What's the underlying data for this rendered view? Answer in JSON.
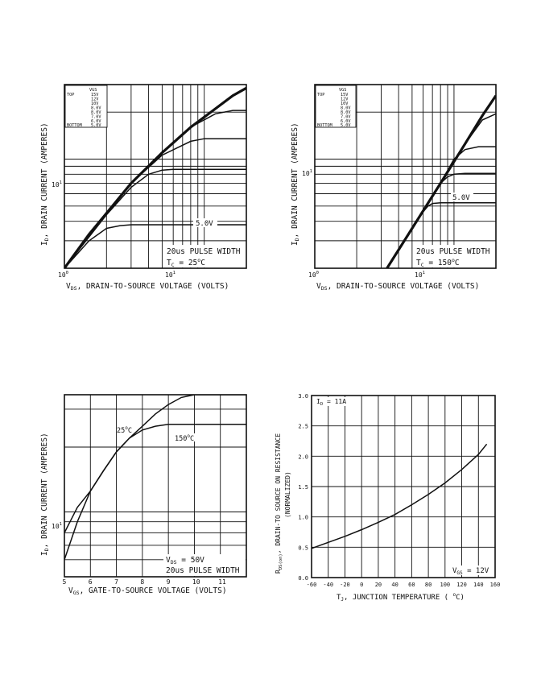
{
  "chart_data": [
    {
      "type": "line",
      "xscale": "log",
      "yscale": "log",
      "xlim": [
        1,
        20
      ],
      "ylim": [
        2,
        30
      ],
      "xlabel": "V_DS, DRAIN-TO-SOURCE VOLTAGE (VOLTS)",
      "ylabel": "I_D, DRAIN CURRENT (AMPERES)",
      "x_tick_labels": [
        "10^0",
        "10^1"
      ],
      "y_tick_labels": [
        "10^1"
      ],
      "legend": {
        "header": [
          "",
          "VGS"
        ],
        "rows": [
          [
            "TOP",
            "15V"
          ],
          [
            "",
            "12V"
          ],
          [
            "",
            "10V"
          ],
          [
            "",
            "8.0V"
          ],
          [
            "",
            "8.0V"
          ],
          [
            "",
            "7.0V"
          ],
          [
            "",
            "6.0V"
          ],
          [
            "BOTTOM",
            "5.0V"
          ]
        ]
      },
      "annotations": [
        "20us PULSE WIDTH",
        "TC = 25°C",
        "5.0V"
      ],
      "series": [
        {
          "name": "15V",
          "x": [
            1,
            1.5,
            2,
            3,
            5,
            8,
            12,
            16,
            20
          ],
          "y": [
            2.0,
            3.3,
            4.5,
            7.0,
            11.0,
            16.0,
            21.0,
            25.5,
            28.5
          ]
        },
        {
          "name": "10V",
          "x": [
            1,
            2,
            3,
            5,
            8,
            12,
            16,
            20
          ],
          "y": [
            2.0,
            4.5,
            7.0,
            11.0,
            16.0,
            19.5,
            20.5,
            20.5
          ]
        },
        {
          "name": "7.0V",
          "x": [
            1,
            2,
            3,
            5,
            8,
            10,
            15,
            20
          ],
          "y": [
            2.0,
            4.5,
            7.0,
            10.6,
            13.0,
            13.5,
            13.5,
            13.5
          ]
        },
        {
          "name": "6.0V",
          "x": [
            1,
            2,
            3,
            4,
            5,
            6,
            10,
            20
          ],
          "y": [
            2.0,
            4.4,
            6.6,
            8.0,
            8.5,
            8.6,
            8.6,
            8.6
          ]
        },
        {
          "name": "5.0V",
          "x": [
            1,
            1.5,
            2,
            2.5,
            3,
            4,
            8,
            20
          ],
          "y": [
            2.0,
            3.0,
            3.6,
            3.75,
            3.8,
            3.8,
            3.8,
            3.8
          ]
        }
      ]
    },
    {
      "type": "line",
      "xscale": "log",
      "yscale": "log",
      "xlim": [
        1,
        20
      ],
      "ylim": [
        2,
        30
      ],
      "xlabel": "V_DS, DRAIN-TO-SOURCE VOLTAGE (VOLTS)",
      "ylabel": "I_D, DRAIN CURRENT (AMPERES)",
      "x_tick_labels": [
        "10^0",
        "10^1"
      ],
      "y_tick_labels": [
        "10^1"
      ],
      "legend": {
        "header": [
          "",
          "VGS"
        ],
        "rows": [
          [
            "TOP",
            "15V"
          ],
          [
            "",
            "12V"
          ],
          [
            "",
            "10V"
          ],
          [
            "",
            "8.0V"
          ],
          [
            "",
            "8.0V"
          ],
          [
            "",
            "7.0V"
          ],
          [
            "",
            "6.0V"
          ],
          [
            "BOTTOM",
            "5.0V"
          ]
        ]
      },
      "annotations": [
        "20us PULSE WIDTH",
        "TC = 150°C",
        "5.0V"
      ],
      "series": [
        {
          "name": "15V",
          "x": [
            3.3,
            5,
            8,
            12,
            16,
            20
          ],
          "y": [
            2.0,
            3.6,
            7.0,
            12.5,
            19.0,
            25.5
          ]
        },
        {
          "name": "10V",
          "x": [
            3.3,
            5,
            8,
            12,
            16,
            20
          ],
          "y": [
            2.0,
            3.6,
            7.0,
            12.5,
            17.8,
            19.5
          ]
        },
        {
          "name": "7.0V",
          "x": [
            3.3,
            5,
            8,
            10,
            12,
            15,
            20
          ],
          "y": [
            2.0,
            3.6,
            7.0,
            10.0,
            11.5,
            12.0,
            12.0
          ]
        },
        {
          "name": "6.0V",
          "x": [
            3.3,
            5,
            8,
            9,
            10,
            12,
            20
          ],
          "y": [
            2.0,
            3.6,
            7.0,
            7.7,
            8.0,
            8.1,
            8.1
          ]
        },
        {
          "name": "5.0V",
          "x": [
            3.3,
            5,
            6,
            6.5,
            7,
            8,
            10,
            20
          ],
          "y": [
            2.0,
            3.6,
            4.6,
            5.0,
            5.2,
            5.25,
            5.25,
            5.25
          ]
        }
      ]
    },
    {
      "type": "line",
      "xscale": "linear",
      "yscale": "log",
      "xlim": [
        5,
        12
      ],
      "ylim": [
        5,
        35
      ],
      "xlabel": "V_GS, GATE-TO-SOURCE VOLTAGE (VOLTS)",
      "ylabel": "I_D, DRAIN CURRENT (AMPERES)",
      "x_tick_labels": [
        "5",
        "6",
        "7",
        "8",
        "9",
        "10",
        "11"
      ],
      "y_tick_labels": [
        "10^1"
      ],
      "annotations": [
        "25°C",
        "150°C",
        "VDS = 50V",
        "20us PULSE WIDTH"
      ],
      "series": [
        {
          "name": "25°C",
          "x": [
            5,
            5.5,
            6,
            6.5,
            7,
            7.5,
            8,
            8.5,
            9,
            9.5,
            10,
            11,
            12
          ],
          "y": [
            6.0,
            9.0,
            12.5,
            15.5,
            19.0,
            22.0,
            25.0,
            28.5,
            31.5,
            34.0,
            35.0,
            35.0,
            35.0
          ]
        },
        {
          "name": "150°C",
          "x": [
            5,
            5.5,
            6,
            6.5,
            7,
            7.5,
            8,
            8.5,
            9,
            9.5,
            10,
            11,
            12
          ],
          "y": [
            8.0,
            10.5,
            12.5,
            15.5,
            19.0,
            22.0,
            24.0,
            25.0,
            25.5,
            25.5,
            25.5,
            25.5,
            25.5
          ]
        }
      ]
    },
    {
      "type": "line",
      "xscale": "linear",
      "yscale": "linear",
      "xlim": [
        -60,
        160
      ],
      "ylim": [
        0,
        3.0
      ],
      "xlabel": "T_J, JUNCTION TEMPERATURE (°C)",
      "ylabel": "R_DS(on), DRAIN-TO SOURCE ON RESISTANCE (NORMALIZED)",
      "x_tick_labels": [
        "-60",
        "-40",
        "-20",
        "0",
        "20",
        "40",
        "60",
        "80",
        "100",
        "120",
        "140",
        "160"
      ],
      "y_tick_labels": [
        "0.0",
        "0.5",
        "1.0",
        "1.5",
        "2.0",
        "2.5",
        "3.0"
      ],
      "annotations": [
        "ID = 11A",
        "VGS = 12V"
      ],
      "series": [
        {
          "name": "",
          "x": [
            -60,
            -40,
            -20,
            0,
            20,
            40,
            60,
            80,
            100,
            120,
            140,
            150
          ],
          "y": [
            0.48,
            0.58,
            0.68,
            0.79,
            0.91,
            1.04,
            1.2,
            1.37,
            1.56,
            1.78,
            2.03,
            2.2
          ]
        }
      ]
    }
  ]
}
